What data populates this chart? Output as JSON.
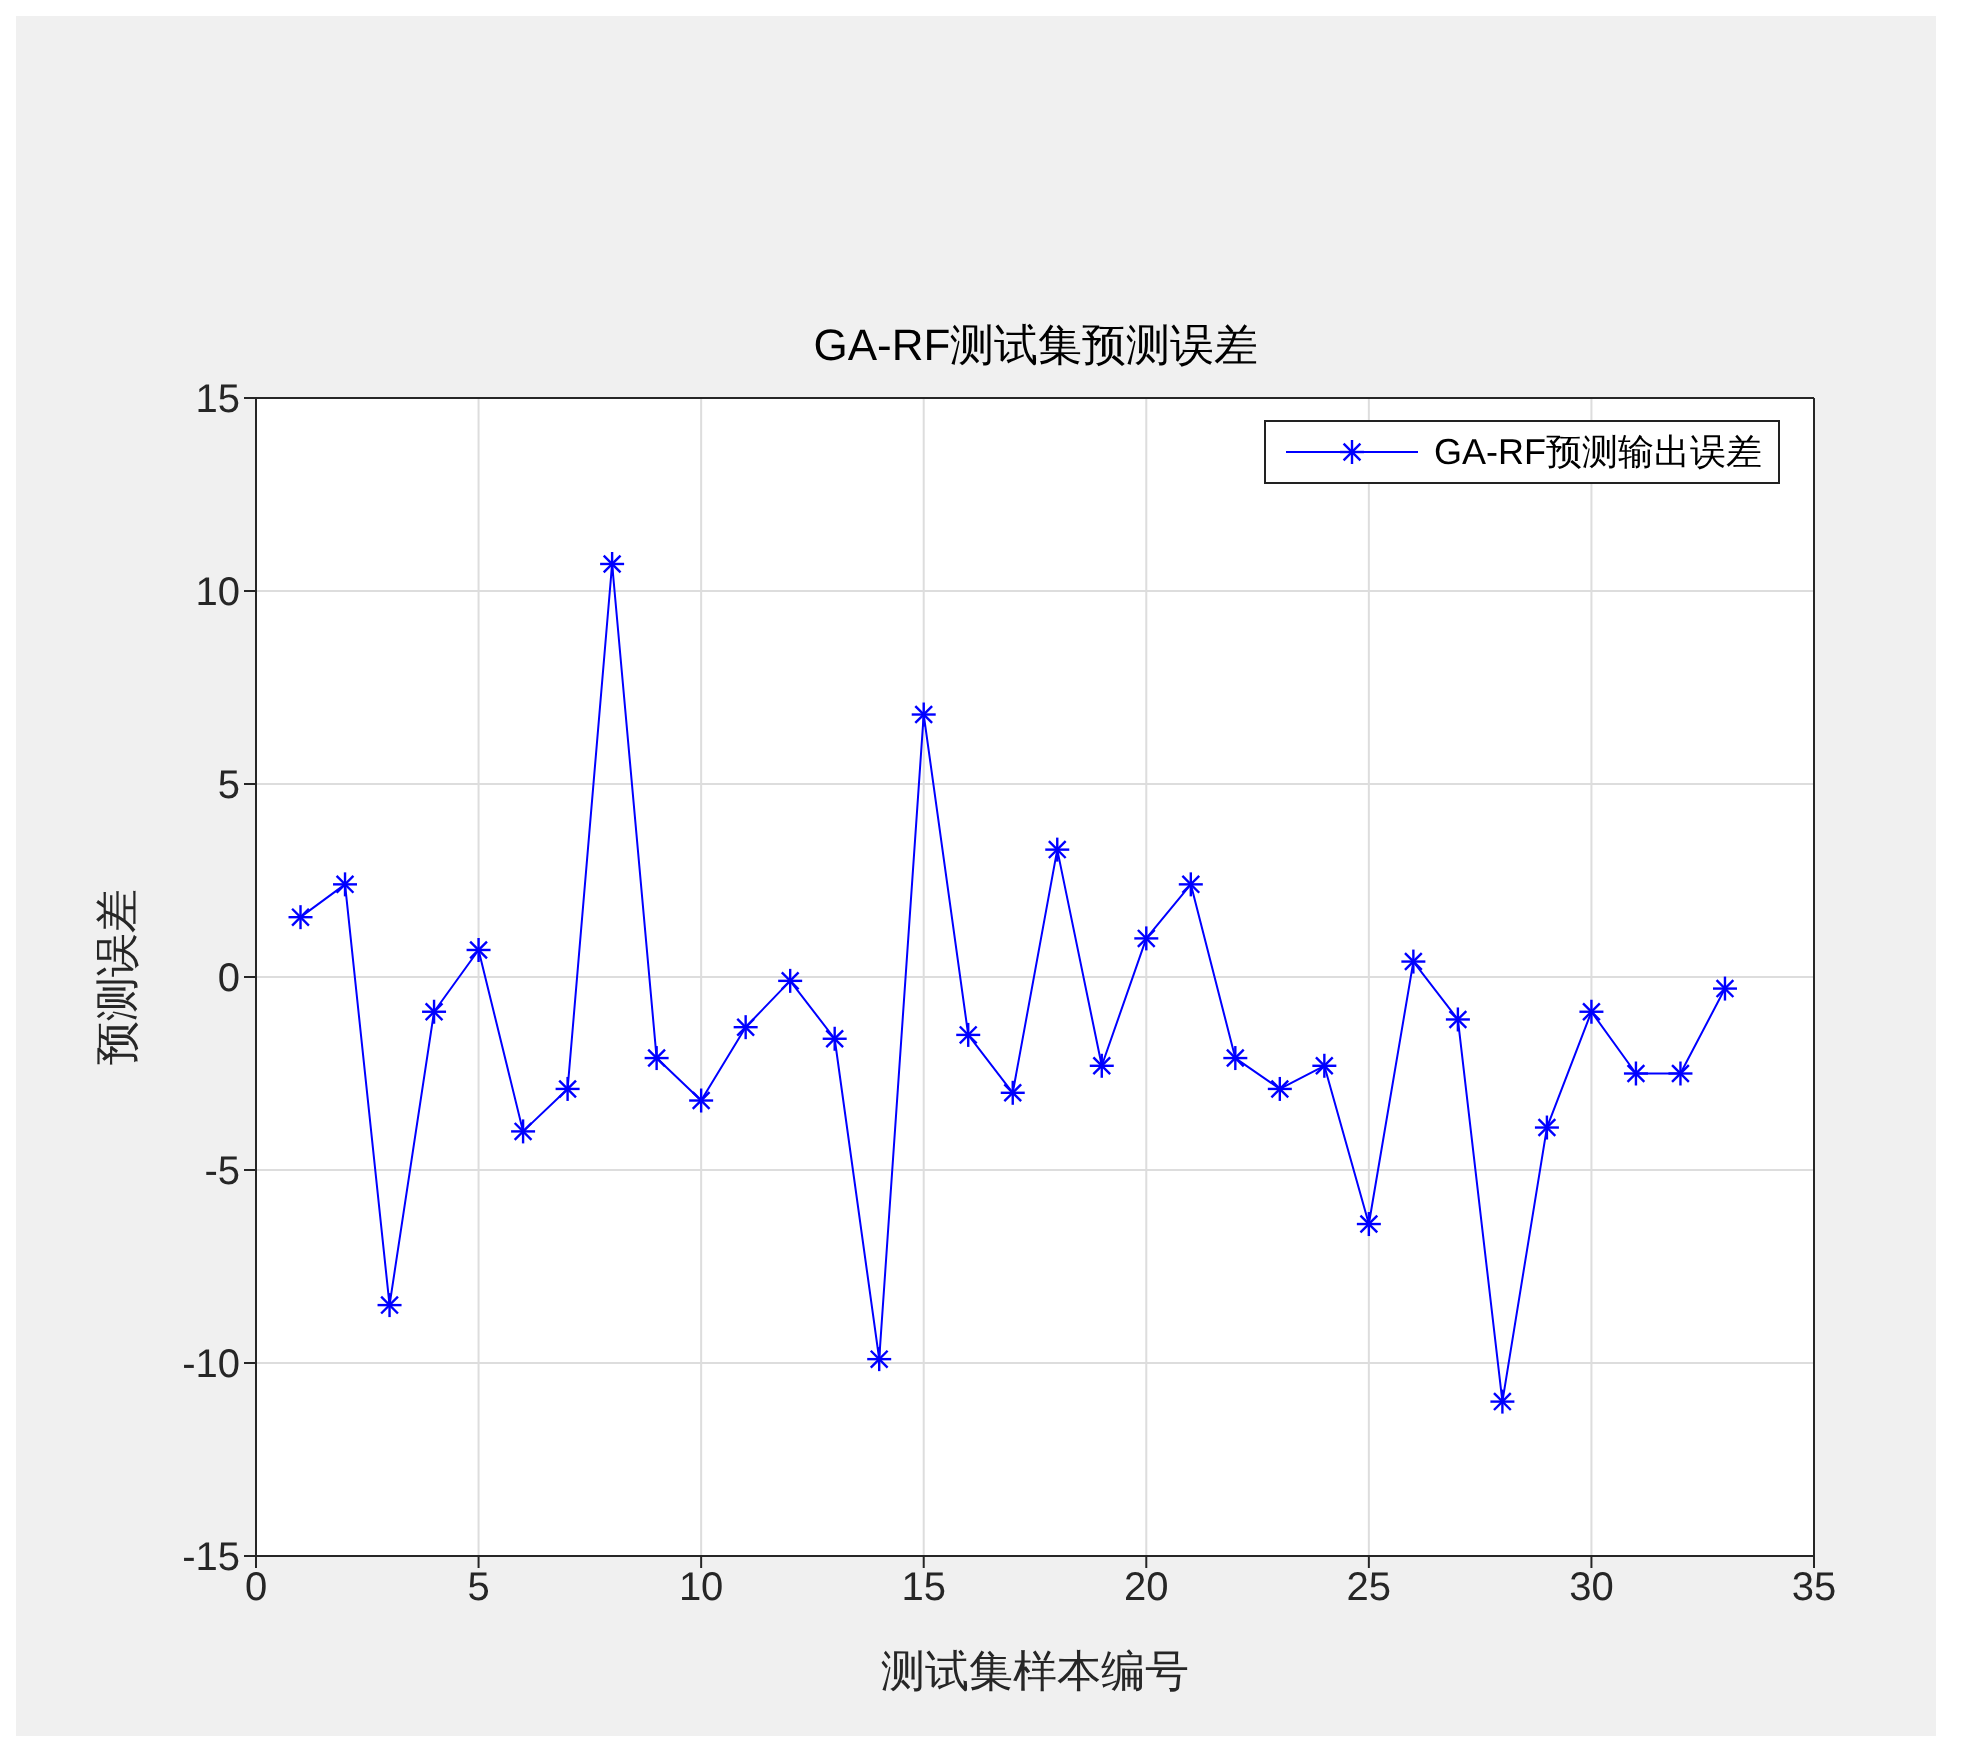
{
  "chart_data": {
    "type": "line",
    "title": "GA-RF测试集预测误差",
    "xlabel": "测试集样本编号",
    "ylabel": "预测误差",
    "x": [
      1,
      2,
      3,
      4,
      5,
      6,
      7,
      8,
      9,
      10,
      11,
      12,
      13,
      14,
      15,
      16,
      17,
      18,
      19,
      20,
      21,
      22,
      23,
      24,
      25,
      26,
      27,
      28,
      29,
      30,
      31,
      32,
      33
    ],
    "series": [
      {
        "name": "GA-RF预测输出误差",
        "color": "#0000ff",
        "values": [
          1.55,
          2.4,
          -8.5,
          -0.9,
          0.7,
          -4.0,
          -2.9,
          10.7,
          -2.1,
          -3.2,
          -1.3,
          -0.1,
          -1.6,
          -9.9,
          6.8,
          -1.5,
          -3.0,
          3.3,
          -2.3,
          1.0,
          2.4,
          -2.1,
          -2.9,
          -2.3,
          -6.4,
          0.4,
          -1.1,
          -11.0,
          -3.9,
          -0.9,
          -2.5,
          -2.5,
          -0.3
        ]
      }
    ],
    "xlim": [
      0,
      35
    ],
    "xticks": [
      0,
      5,
      10,
      15,
      20,
      25,
      30,
      35
    ],
    "ylim": [
      -15,
      15
    ],
    "yticks": [
      -15,
      -10,
      -5,
      0,
      5,
      10,
      15
    ],
    "grid": true,
    "legend": "top right",
    "marker": "cross",
    "line_style": "solid"
  }
}
